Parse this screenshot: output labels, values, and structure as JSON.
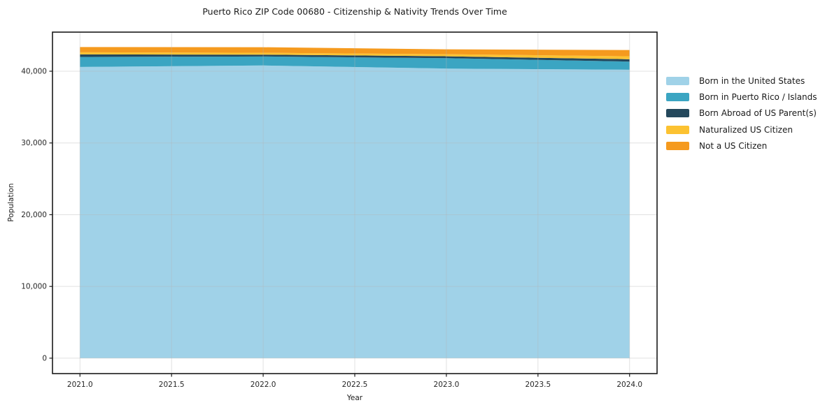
{
  "chart_data": {
    "type": "area",
    "stacked": true,
    "title": "Puerto Rico ZIP Code 00680 - Citizenship & Nativity Trends Over Time",
    "xlabel": "Year",
    "ylabel": "Population",
    "x": [
      2021,
      2022,
      2023,
      2024
    ],
    "series": [
      {
        "name": "Born in the United States",
        "color": "#a0d2e8",
        "values": [
          40600,
          40800,
          40370,
          40210
        ]
      },
      {
        "name": "Born in Puerto Rico / Islands",
        "color": "#3ba5c2",
        "values": [
          1390,
          1255,
          1455,
          1130
        ]
      },
      {
        "name": "Born Abroad of US Parent(s)",
        "color": "#24485c",
        "values": [
          355,
          255,
          260,
          330
        ]
      },
      {
        "name": "Naturalized US Citizen",
        "color": "#fcc231",
        "values": [
          295,
          260,
          290,
          410
        ]
      },
      {
        "name": "Not a US Citizen",
        "color": "#f59a1e",
        "values": [
          730,
          775,
          675,
          875
        ]
      }
    ],
    "xticks": [
      2021.0,
      2021.5,
      2022.0,
      2022.5,
      2023.0,
      2023.5,
      2024.0
    ],
    "xtick_labels": [
      "2021.0",
      "2021.5",
      "2022.0",
      "2022.5",
      "2023.0",
      "2023.5",
      "2024.0"
    ],
    "yticks": [
      0,
      10000,
      20000,
      30000,
      40000
    ],
    "ytick_labels": [
      "0",
      "10,000",
      "20,000",
      "30,000",
      "40,000"
    ],
    "xlim": [
      2020.85,
      2024.15
    ],
    "ylim": [
      -2150,
      45450
    ],
    "grid": true,
    "legend_position": "right"
  }
}
